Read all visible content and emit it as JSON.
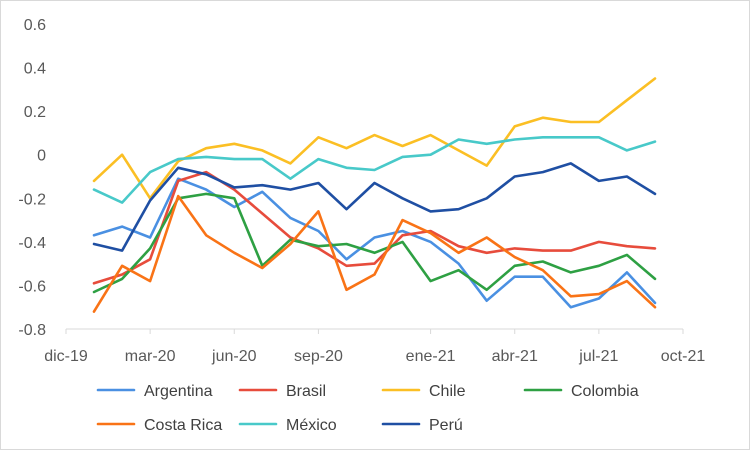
{
  "chart_data": {
    "type": "line",
    "title": "",
    "xlabel": "",
    "ylabel": "",
    "ylim": [
      -0.8,
      0.6
    ],
    "y_ticks": [
      -0.8,
      -0.6,
      -0.4,
      -0.2,
      0,
      0.2,
      0.4,
      0.6
    ],
    "y_tick_labels": [
      "-0.8",
      "-0.6",
      "-0.4",
      "-0.2",
      "0",
      "0.2",
      "0.4",
      "0.6"
    ],
    "x_range_months": [
      0,
      22
    ],
    "x_ticks": [
      0,
      3,
      6,
      9,
      13,
      16,
      19,
      22
    ],
    "x_tick_labels": [
      "dic-19",
      "mar-20",
      "jun-20",
      "sep-20",
      "ene-21",
      "abr-21",
      "jul-21",
      "oct-21"
    ],
    "grid": false,
    "legend_position": "bottom",
    "series": [
      {
        "name": "Argentina",
        "color": "#4a90e2",
        "x": [
          1,
          2,
          3,
          4,
          5,
          6,
          7,
          8,
          9,
          10,
          11,
          12,
          13,
          14,
          15,
          16,
          17,
          18,
          19,
          20,
          21
        ],
        "values": [
          -0.37,
          -0.33,
          -0.38,
          -0.11,
          -0.16,
          -0.24,
          -0.17,
          -0.29,
          -0.35,
          -0.48,
          -0.38,
          -0.35,
          -0.4,
          -0.5,
          -0.67,
          -0.56,
          -0.56,
          -0.7,
          -0.66,
          -0.54,
          -0.68
        ]
      },
      {
        "name": "Brasil",
        "color": "#e74c3c",
        "x": [
          1,
          2,
          3,
          4,
          5,
          6,
          7,
          8,
          9,
          10,
          11,
          12,
          13,
          14,
          15,
          16,
          17,
          18,
          19,
          20,
          21
        ],
        "values": [
          -0.59,
          -0.55,
          -0.48,
          -0.12,
          -0.08,
          -0.16,
          -0.27,
          -0.38,
          -0.43,
          -0.51,
          -0.5,
          -0.37,
          -0.35,
          -0.42,
          -0.45,
          -0.43,
          -0.44,
          -0.44,
          -0.4,
          -0.42,
          -0.43
        ]
      },
      {
        "name": "Chile",
        "color": "#fbbf24",
        "x": [
          1,
          2,
          3,
          4,
          5,
          6,
          7,
          8,
          9,
          10,
          11,
          12,
          13,
          14,
          15,
          16,
          17,
          18,
          19,
          20,
          21
        ],
        "values": [
          -0.12,
          0.0,
          -0.2,
          -0.03,
          0.03,
          0.05,
          0.02,
          -0.04,
          0.08,
          0.03,
          0.09,
          0.04,
          0.09,
          0.02,
          -0.05,
          0.13,
          0.17,
          0.15,
          0.15,
          0.25,
          0.35
        ]
      },
      {
        "name": "Colombia",
        "color": "#2ea043",
        "x": [
          1,
          2,
          3,
          4,
          5,
          6,
          7,
          8,
          9,
          10,
          11,
          12,
          13,
          14,
          15,
          16,
          17,
          18,
          19,
          20,
          21
        ],
        "values": [
          -0.63,
          -0.57,
          -0.43,
          -0.2,
          -0.18,
          -0.2,
          -0.51,
          -0.39,
          -0.42,
          -0.41,
          -0.45,
          -0.4,
          -0.58,
          -0.53,
          -0.62,
          -0.51,
          -0.49,
          -0.54,
          -0.51,
          -0.46,
          -0.57
        ]
      },
      {
        "name": "Costa Rica",
        "color": "#f97316",
        "x": [
          1,
          2,
          3,
          4,
          5,
          6,
          7,
          8,
          9,
          10,
          11,
          12,
          13,
          14,
          15,
          16,
          17,
          18,
          19,
          20,
          21
        ],
        "values": [
          -0.72,
          -0.51,
          -0.58,
          -0.19,
          -0.37,
          -0.45,
          -0.52,
          -0.41,
          -0.26,
          -0.62,
          -0.55,
          -0.3,
          -0.36,
          -0.45,
          -0.38,
          -0.47,
          -0.53,
          -0.65,
          -0.64,
          -0.58,
          -0.7
        ]
      },
      {
        "name": "México",
        "color": "#48c9c9",
        "x": [
          1,
          2,
          3,
          4,
          5,
          6,
          7,
          8,
          9,
          10,
          11,
          12,
          13,
          14,
          15,
          16,
          17,
          18,
          19,
          20,
          21
        ],
        "values": [
          -0.16,
          -0.22,
          -0.08,
          -0.02,
          -0.01,
          -0.02,
          -0.02,
          -0.11,
          -0.02,
          -0.06,
          -0.07,
          -0.01,
          0.0,
          0.07,
          0.05,
          0.07,
          0.08,
          0.08,
          0.08,
          0.02,
          0.06
        ]
      },
      {
        "name": "Perú",
        "color": "#1f4fa3",
        "x": [
          1,
          2,
          3,
          4,
          5,
          6,
          7,
          8,
          9,
          10,
          11,
          12,
          13,
          14,
          15,
          16,
          17,
          18,
          19,
          20,
          21
        ],
        "values": [
          -0.41,
          -0.44,
          -0.21,
          -0.06,
          -0.09,
          -0.15,
          -0.14,
          -0.16,
          -0.13,
          -0.25,
          -0.13,
          -0.2,
          -0.26,
          -0.25,
          -0.2,
          -0.1,
          -0.08,
          -0.04,
          -0.12,
          -0.1,
          -0.18
        ]
      }
    ]
  }
}
